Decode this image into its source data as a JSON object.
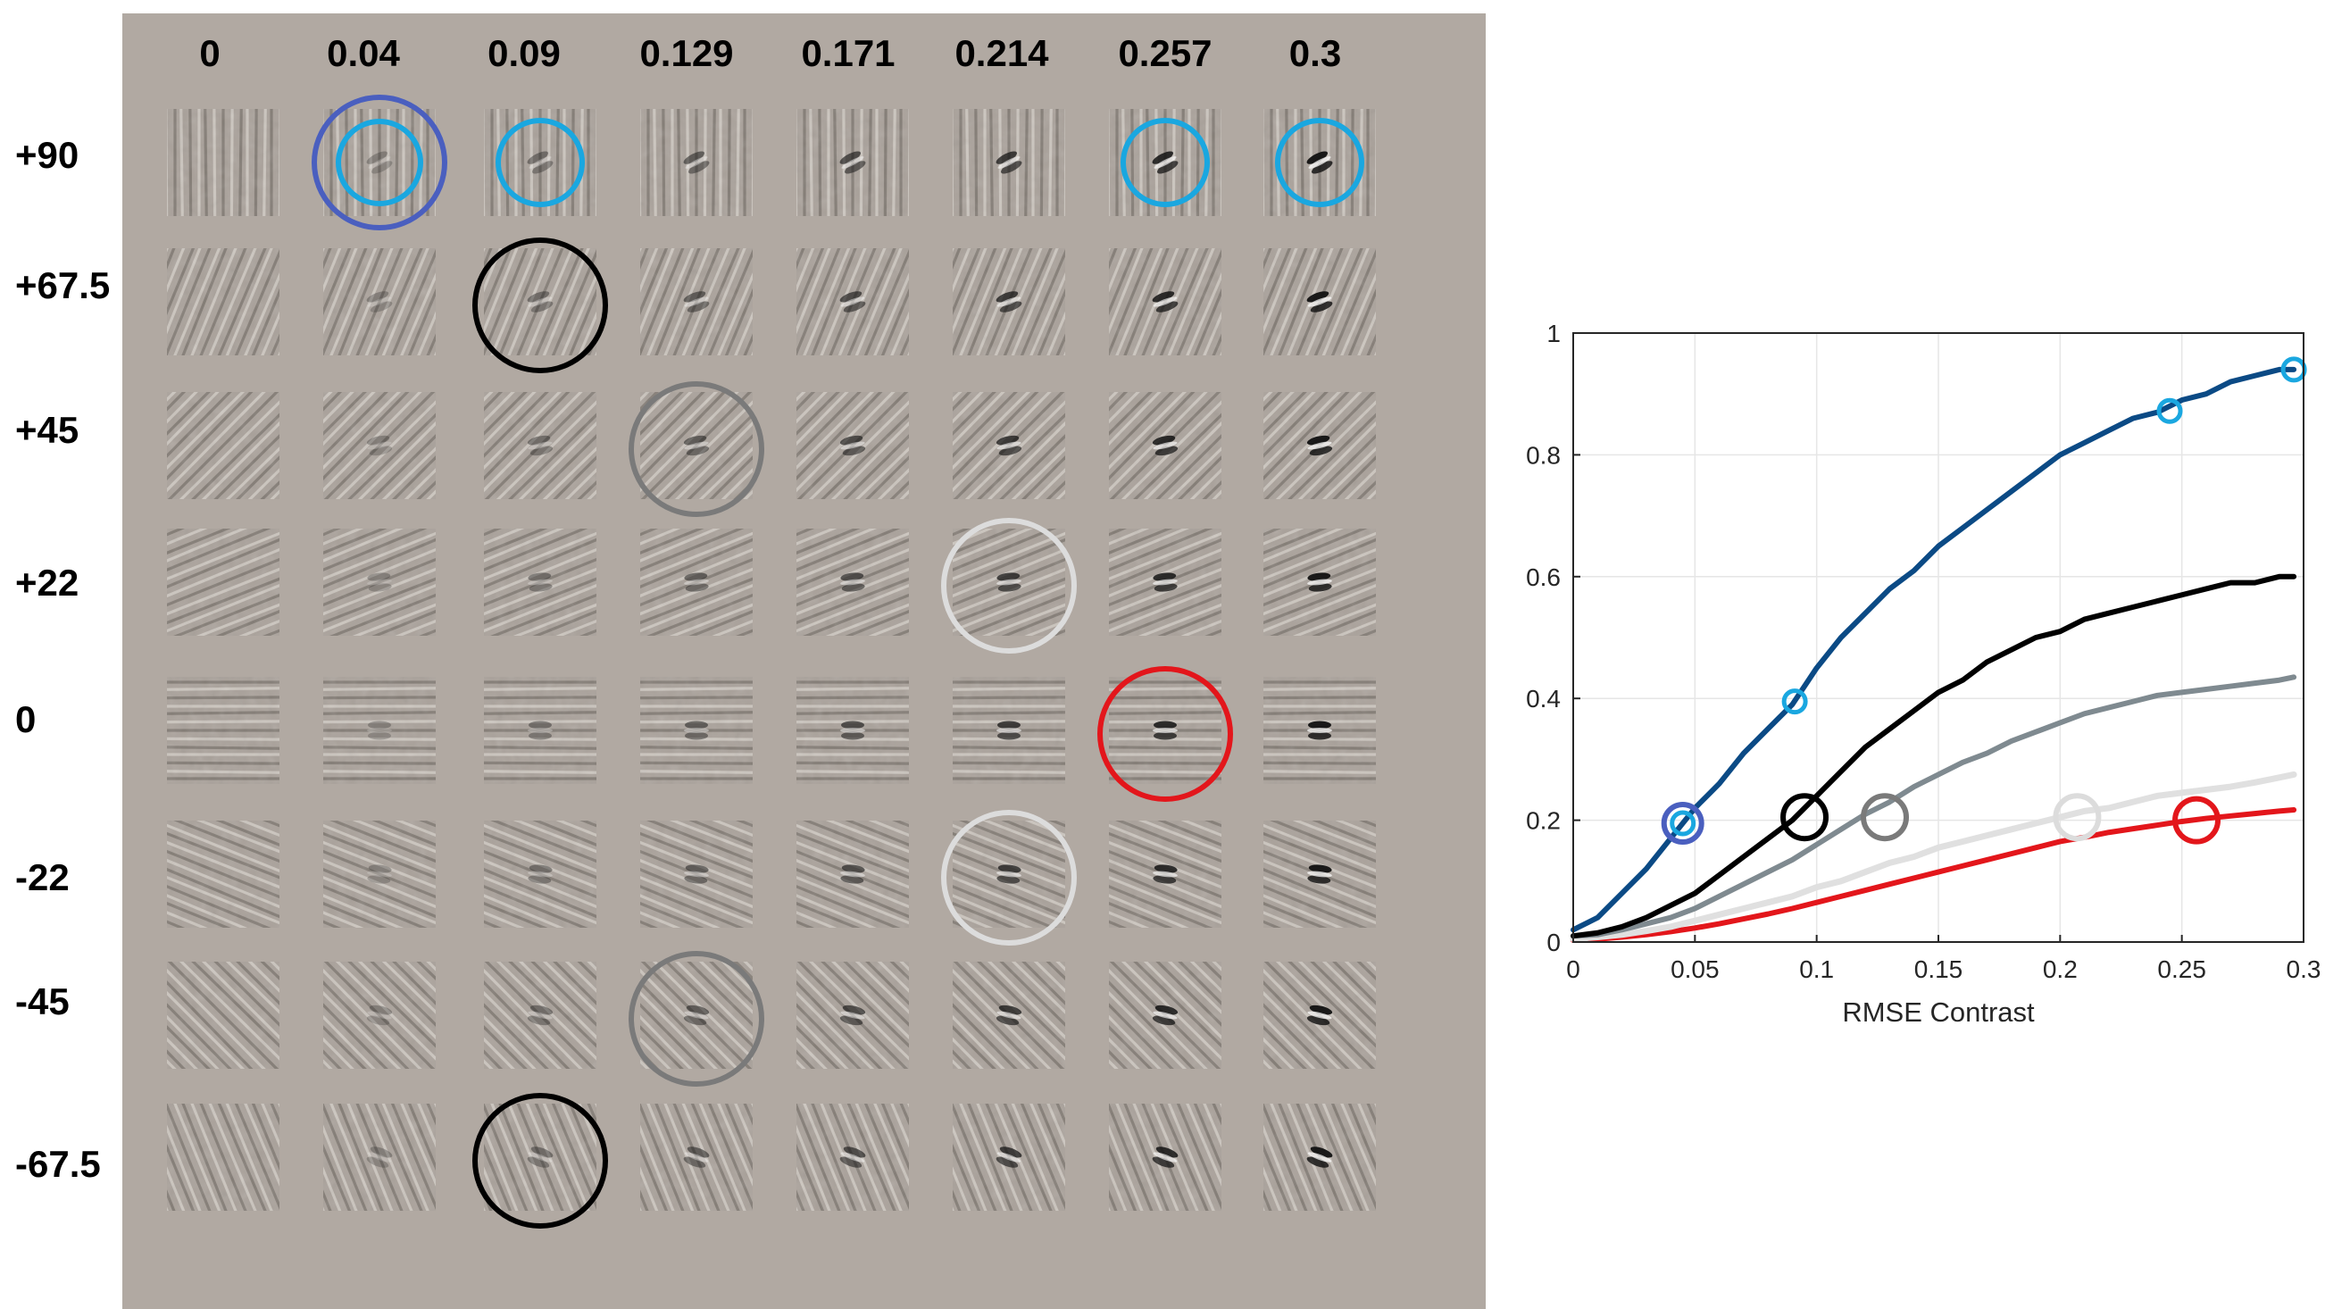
{
  "grid": {
    "background_color": "#b1a9a2",
    "column_labels": [
      "0",
      "0.04",
      "0.09",
      "0.129",
      "0.171",
      "0.214",
      "0.257",
      "0.3"
    ],
    "row_labels": [
      "+90",
      "+67.5",
      "+45",
      "+22",
      "0",
      "-22",
      "-45",
      "-67.5"
    ],
    "row_angles_deg": [
      90,
      67.5,
      45,
      22,
      0,
      -22,
      -45,
      -67.5
    ],
    "column_contrasts": [
      0,
      0.04,
      0.09,
      0.129,
      0.171,
      0.214,
      0.257,
      0.3
    ],
    "circled_cells": [
      {
        "row": 0,
        "col": 1,
        "color": "#4a5fbf",
        "style": "double"
      },
      {
        "row": 0,
        "col": 2,
        "color": "#1aa7e0",
        "style": "small"
      },
      {
        "row": 0,
        "col": 6,
        "color": "#1aa7e0",
        "style": "small"
      },
      {
        "row": 0,
        "col": 7,
        "color": "#1aa7e0",
        "style": "small"
      },
      {
        "row": 1,
        "col": 2,
        "color": "#000000",
        "style": "large"
      },
      {
        "row": 2,
        "col": 3,
        "color": "#7a7a7a",
        "style": "large"
      },
      {
        "row": 3,
        "col": 5,
        "color": "#dcdcdc",
        "style": "large"
      },
      {
        "row": 4,
        "col": 6,
        "color": "#e3161b",
        "style": "large"
      },
      {
        "row": 5,
        "col": 5,
        "color": "#dcdcdc",
        "style": "large"
      },
      {
        "row": 6,
        "col": 3,
        "color": "#7a7a7a",
        "style": "large"
      },
      {
        "row": 7,
        "col": 2,
        "color": "#000000",
        "style": "large"
      }
    ]
  },
  "chart_data": {
    "type": "line",
    "title": "",
    "xlabel": "RMSE Contrast",
    "ylabel": "",
    "xlim": [
      0,
      0.3
    ],
    "ylim": [
      0,
      1
    ],
    "grid": true,
    "x_tick_labels": [
      "0",
      "0.05",
      "0.1",
      "0.15",
      "0.2",
      "0.25",
      "0.3"
    ],
    "x_tick_values": [
      0,
      0.05,
      0.1,
      0.15,
      0.2,
      0.25,
      0.3
    ],
    "y_tick_labels": [
      "0",
      "0.2",
      "0.4",
      "0.6",
      "0.8",
      "1"
    ],
    "y_tick_values": [
      0,
      0.2,
      0.4,
      0.6,
      0.8,
      1
    ],
    "x": [
      0,
      0.01,
      0.02,
      0.03,
      0.04,
      0.05,
      0.06,
      0.07,
      0.08,
      0.09,
      0.1,
      0.11,
      0.12,
      0.13,
      0.14,
      0.15,
      0.16,
      0.17,
      0.18,
      0.19,
      0.2,
      0.21,
      0.22,
      0.23,
      0.24,
      0.25,
      0.26,
      0.27,
      0.28,
      0.29,
      0.296
    ],
    "series": [
      {
        "color": "#0b4a85",
        "width": 6,
        "values": [
          0.02,
          0.04,
          0.08,
          0.12,
          0.17,
          0.22,
          0.26,
          0.31,
          0.35,
          0.39,
          0.45,
          0.5,
          0.54,
          0.58,
          0.61,
          0.65,
          0.68,
          0.71,
          0.74,
          0.77,
          0.8,
          0.82,
          0.84,
          0.86,
          0.87,
          0.89,
          0.9,
          0.92,
          0.93,
          0.94,
          0.94
        ]
      },
      {
        "color": "#000000",
        "width": 6,
        "values": [
          0.01,
          0.015,
          0.025,
          0.04,
          0.06,
          0.08,
          0.11,
          0.14,
          0.17,
          0.2,
          0.24,
          0.28,
          0.32,
          0.35,
          0.38,
          0.41,
          0.43,
          0.46,
          0.48,
          0.5,
          0.51,
          0.53,
          0.54,
          0.55,
          0.56,
          0.57,
          0.58,
          0.59,
          0.59,
          0.6,
          0.6
        ]
      },
      {
        "color": "#7f8a90",
        "width": 6,
        "values": [
          0.01,
          0.012,
          0.02,
          0.03,
          0.04,
          0.055,
          0.075,
          0.095,
          0.115,
          0.135,
          0.16,
          0.185,
          0.21,
          0.23,
          0.255,
          0.275,
          0.295,
          0.31,
          0.33,
          0.345,
          0.36,
          0.375,
          0.385,
          0.395,
          0.405,
          0.41,
          0.415,
          0.42,
          0.425,
          0.43,
          0.435
        ]
      },
      {
        "color": "#e0e0e0",
        "width": 7,
        "values": [
          0.005,
          0.008,
          0.012,
          0.018,
          0.025,
          0.035,
          0.045,
          0.055,
          0.065,
          0.075,
          0.09,
          0.1,
          0.115,
          0.13,
          0.14,
          0.155,
          0.165,
          0.175,
          0.185,
          0.195,
          0.205,
          0.215,
          0.22,
          0.23,
          0.24,
          0.245,
          0.25,
          0.255,
          0.262,
          0.27,
          0.275
        ]
      },
      {
        "color": "#e3161b",
        "width": 6,
        "values": [
          0.003,
          0.005,
          0.008,
          0.012,
          0.017,
          0.023,
          0.03,
          0.038,
          0.046,
          0.055,
          0.065,
          0.075,
          0.085,
          0.095,
          0.105,
          0.115,
          0.125,
          0.135,
          0.145,
          0.155,
          0.165,
          0.172,
          0.18,
          0.186,
          0.192,
          0.198,
          0.203,
          0.207,
          0.211,
          0.215,
          0.217
        ]
      }
    ],
    "markers": [
      {
        "x": 0.045,
        "y": 0.195,
        "color": "#1aa7e0",
        "style": "small"
      },
      {
        "x": 0.045,
        "y": 0.195,
        "color": "#4a5fbf",
        "style": "ring"
      },
      {
        "x": 0.091,
        "y": 0.395,
        "color": "#1aa7e0",
        "style": "small"
      },
      {
        "x": 0.245,
        "y": 0.872,
        "color": "#1aa7e0",
        "style": "small"
      },
      {
        "x": 0.296,
        "y": 0.94,
        "color": "#1aa7e0",
        "style": "small"
      },
      {
        "x": 0.095,
        "y": 0.205,
        "color": "#000000",
        "style": "big"
      },
      {
        "x": 0.128,
        "y": 0.205,
        "color": "#7a7a7a",
        "style": "big"
      },
      {
        "x": 0.207,
        "y": 0.205,
        "color": "#dcdcdc",
        "style": "big"
      },
      {
        "x": 0.256,
        "y": 0.2,
        "color": "#e3161b",
        "style": "big"
      }
    ]
  }
}
